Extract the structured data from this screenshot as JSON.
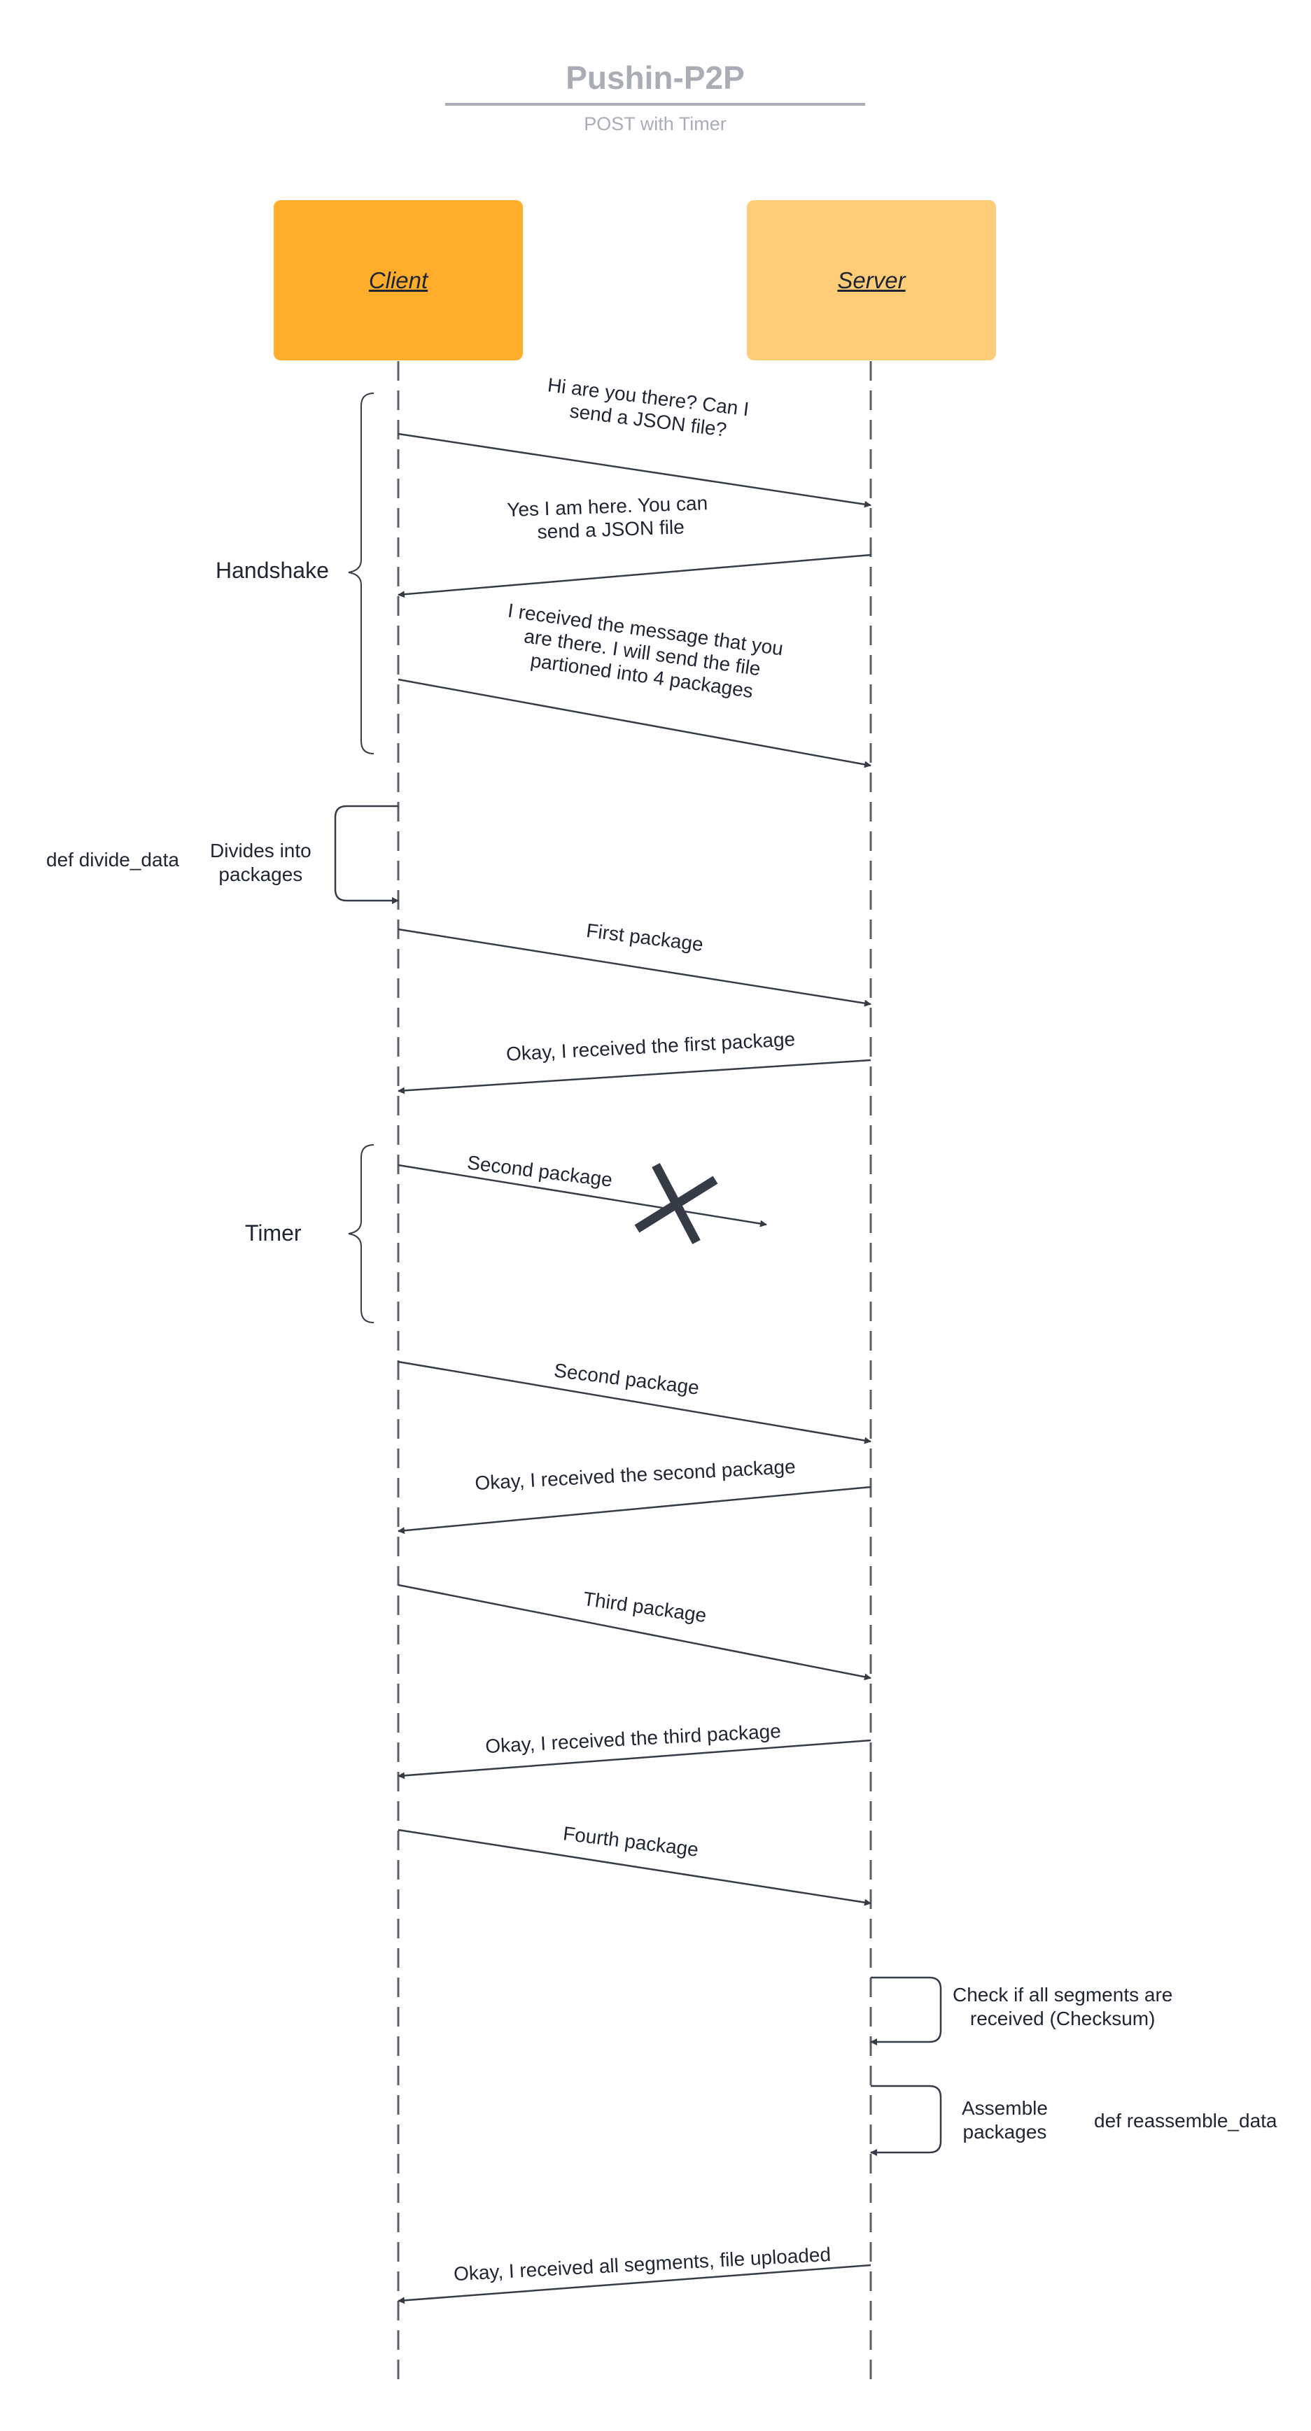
{
  "diagram": {
    "title": "Pushin-P2P",
    "subtitle": "POST with Timer",
    "actors": {
      "client": "Client",
      "server": "Server"
    },
    "messages": [
      {
        "id": "m1",
        "from": "client",
        "to": "server",
        "lines": [
          "Hi are you there? Can I",
          "send a JSON file?"
        ]
      },
      {
        "id": "m2",
        "from": "server",
        "to": "client",
        "lines": [
          "Yes I am here. You can",
          "send a JSON file"
        ]
      },
      {
        "id": "m3",
        "from": "client",
        "to": "server",
        "lines": [
          "I received the message that you",
          "are there. I will send the file",
          "partioned into 4 packages"
        ]
      },
      {
        "id": "m4",
        "from": "client",
        "to": "server",
        "lines": [
          "First package"
        ]
      },
      {
        "id": "m5",
        "from": "server",
        "to": "client",
        "lines": [
          "Okay, I received the first package"
        ]
      },
      {
        "id": "m6",
        "from": "client",
        "to": "server",
        "lines": [
          "Second package"
        ],
        "lost": true
      },
      {
        "id": "m7",
        "from": "client",
        "to": "server",
        "lines": [
          "Second package"
        ]
      },
      {
        "id": "m8",
        "from": "server",
        "to": "client",
        "lines": [
          "Okay, I received the second package"
        ]
      },
      {
        "id": "m9",
        "from": "client",
        "to": "server",
        "lines": [
          "Third package"
        ]
      },
      {
        "id": "m10",
        "from": "server",
        "to": "client",
        "lines": [
          "Okay, I received the third package"
        ]
      },
      {
        "id": "m11",
        "from": "client",
        "to": "server",
        "lines": [
          "Fourth package"
        ]
      },
      {
        "id": "m12",
        "from": "server",
        "to": "client",
        "lines": [
          "Okay, I received all segments, file uploaded"
        ]
      }
    ],
    "self_calls": {
      "divide": {
        "lines": [
          "Divides into",
          "packages"
        ],
        "function": "def divide_data"
      },
      "checksum": {
        "lines": [
          "Check if all segments are",
          "received (Checksum)"
        ]
      },
      "assemble": {
        "lines": [
          "Assemble",
          "packages"
        ],
        "function": "def reassemble_data"
      }
    },
    "groups": {
      "handshake": "Handshake",
      "timer": "Timer"
    }
  }
}
